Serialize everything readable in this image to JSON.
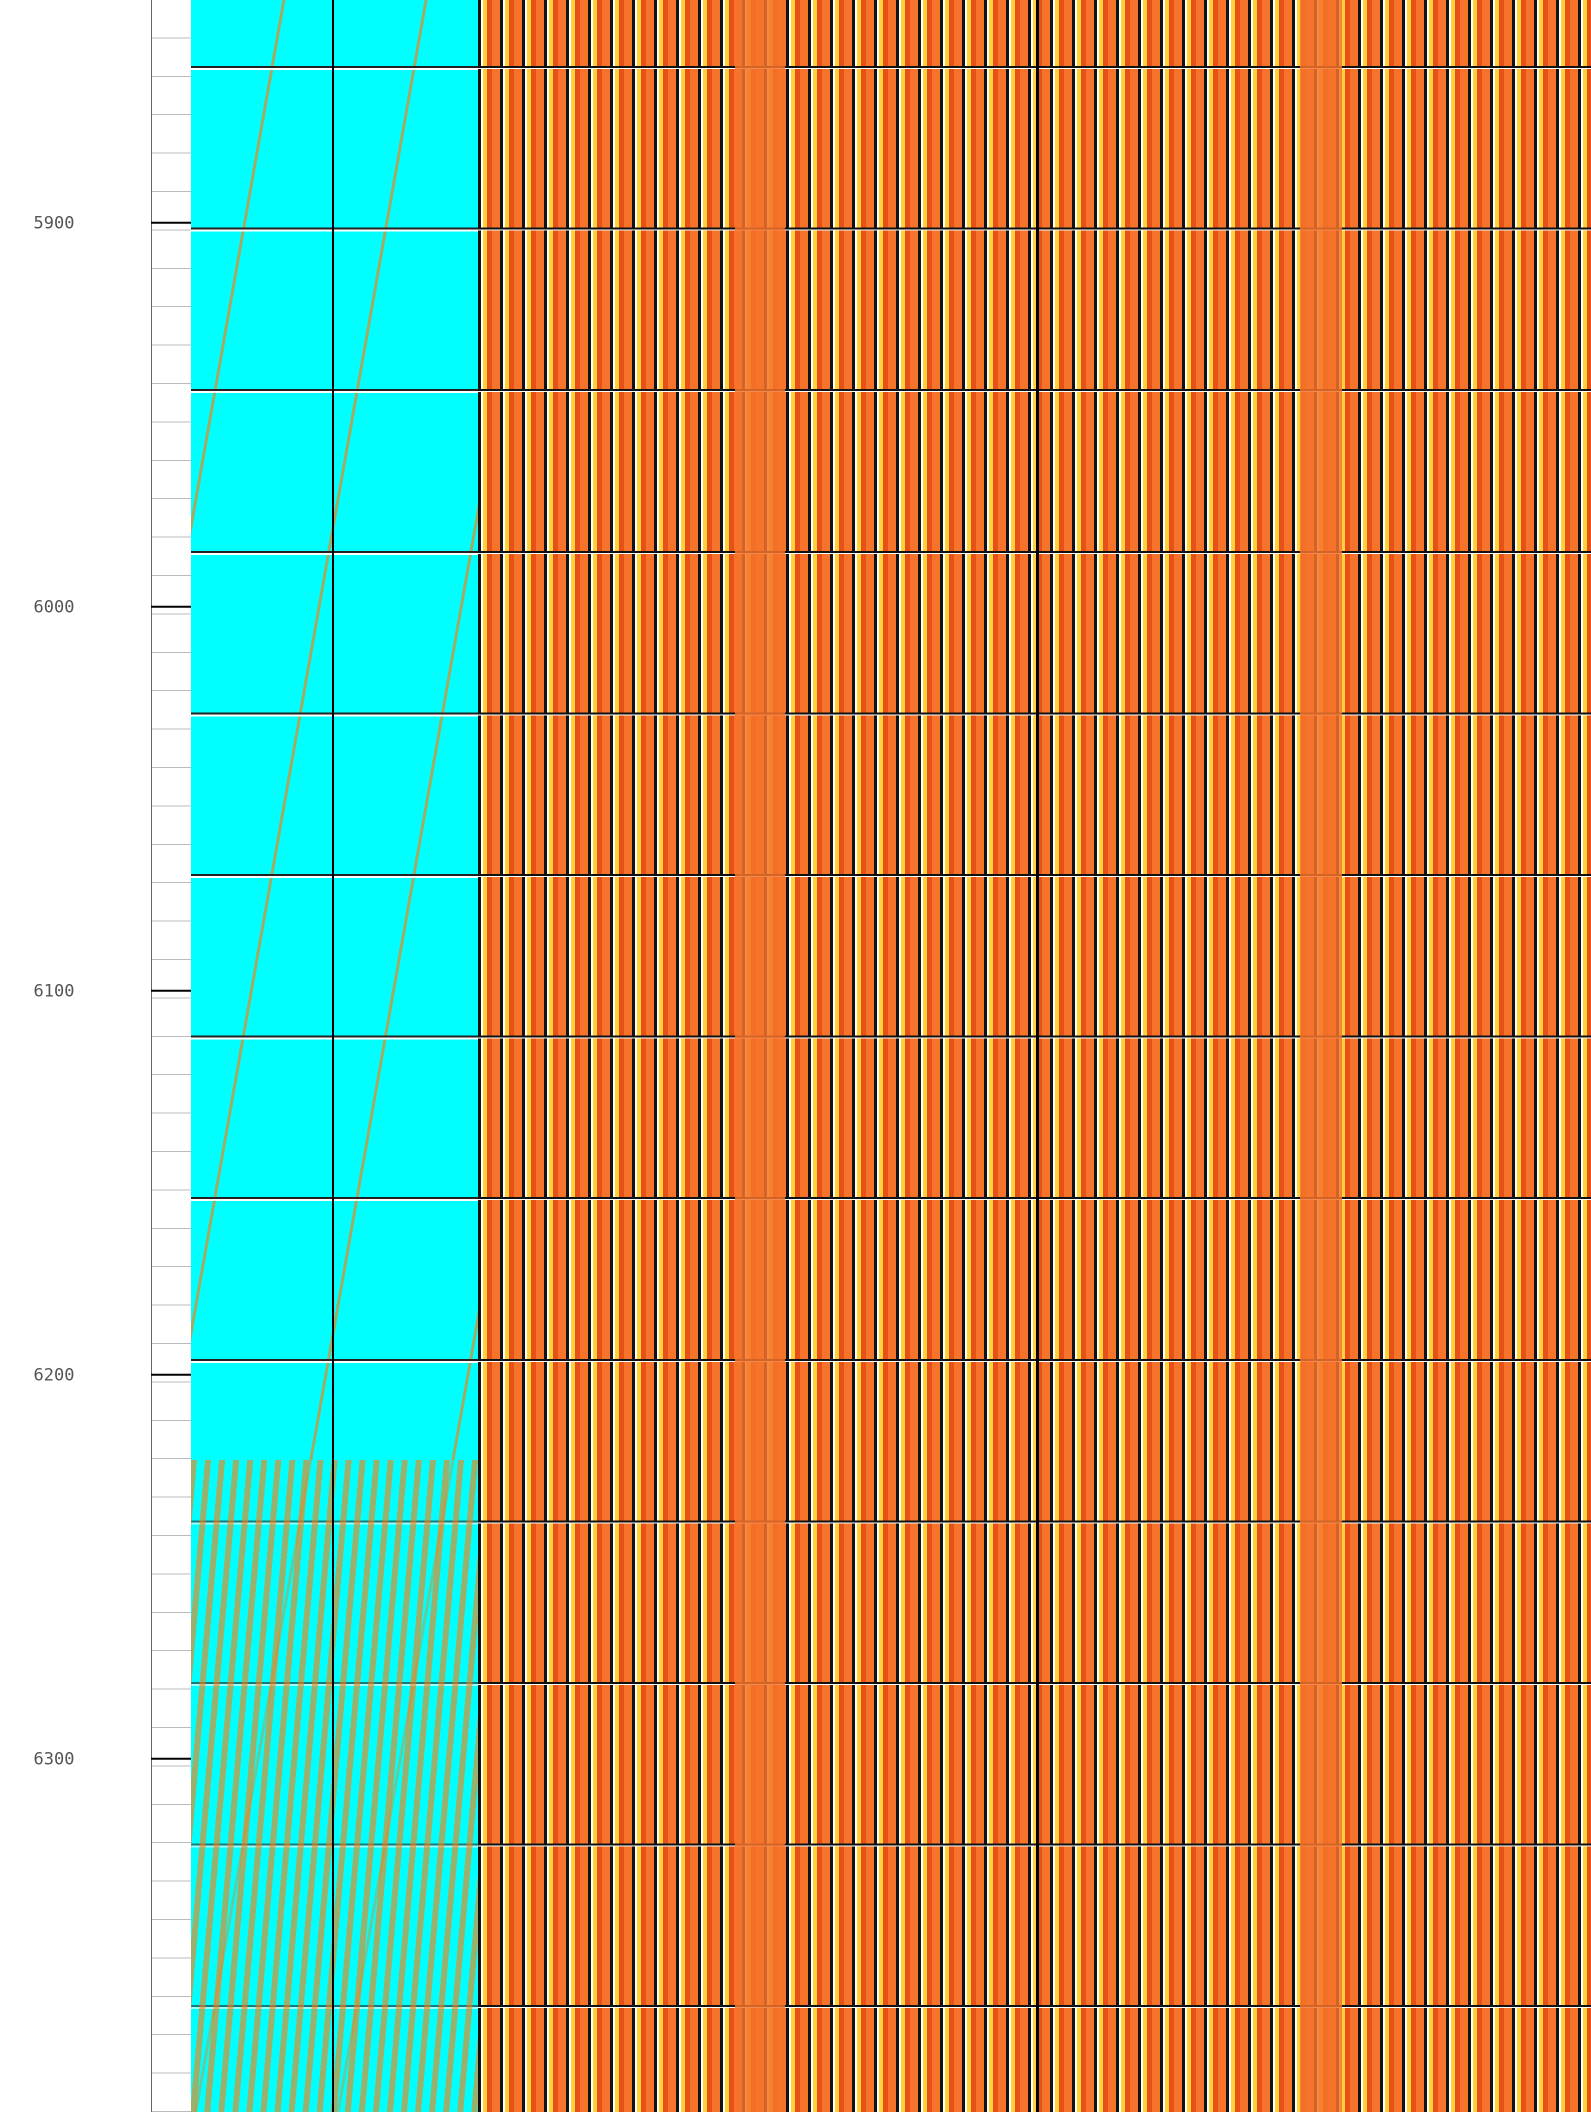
{
  "chart_data": {
    "type": "well-log",
    "ylim": [
      5842,
      6392
    ],
    "yticks": [
      5900,
      6000,
      6100,
      6200,
      6300
    ]
  }
}
